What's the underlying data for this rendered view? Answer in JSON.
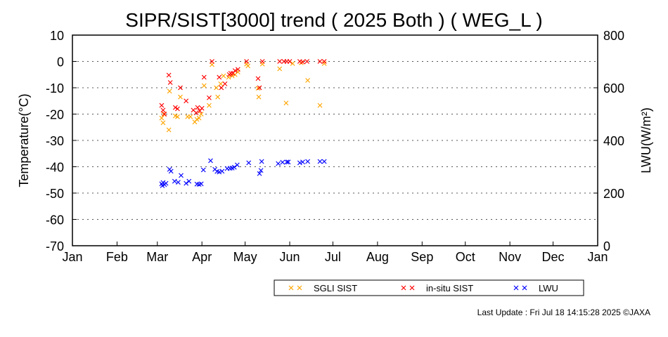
{
  "chart_data": {
    "type": "scatter",
    "title": "SIPR/SIST[3000] trend ( 2025 Both ) ( WEG_L )",
    "ylabel": "Temperature(°C)",
    "y2label": "LWU(W/m²)",
    "ylim": [
      -70,
      10
    ],
    "y2lim": [
      0,
      800
    ],
    "yticks": [
      10,
      0,
      -10,
      -20,
      -30,
      -40,
      -50,
      -60,
      -70
    ],
    "y2ticks": [
      800,
      600,
      400,
      200,
      0
    ],
    "xticks": [
      {
        "label": "Jan",
        "day": 1
      },
      {
        "label": "Feb",
        "day": 32
      },
      {
        "label": "Mar",
        "day": 60
      },
      {
        "label": "Apr",
        "day": 91
      },
      {
        "label": "May",
        "day": 121
      },
      {
        "label": "Jun",
        "day": 152
      },
      {
        "label": "Jul",
        "day": 182
      },
      {
        "label": "Aug",
        "day": 213
      },
      {
        "label": "Sep",
        "day": 244
      },
      {
        "label": "Oct",
        "day": 274
      },
      {
        "label": "Nov",
        "day": 305
      },
      {
        "label": "Dec",
        "day": 335
      },
      {
        "label": "Jan",
        "day": 366
      }
    ],
    "grid": "dotted horizontal",
    "legend_position": "bottom",
    "series": [
      {
        "name": "SGLI SIST",
        "axis": "left",
        "color": "#ffa500",
        "points": [
          [
            63,
            -21.5
          ],
          [
            64,
            -23.3
          ],
          [
            64.5,
            -20
          ],
          [
            68,
            -26
          ],
          [
            68.5,
            -11.3
          ],
          [
            72.5,
            -20.7
          ],
          [
            74,
            -21
          ],
          [
            76,
            -13.5
          ],
          [
            81,
            -21
          ],
          [
            83,
            -21
          ],
          [
            86,
            -23
          ],
          [
            87.5,
            -22
          ],
          [
            89,
            -21.5
          ],
          [
            90.5,
            -20
          ],
          [
            92.5,
            -9.2
          ],
          [
            96,
            -16.7
          ],
          [
            98,
            -1.2
          ],
          [
            101,
            -10
          ],
          [
            102,
            -13.5
          ],
          [
            104,
            -8.5
          ],
          [
            106,
            -5.5
          ],
          [
            109.5,
            -6
          ],
          [
            112,
            -5.5
          ],
          [
            114,
            -5
          ],
          [
            116,
            -4
          ],
          [
            122,
            -1
          ],
          [
            123,
            -1.7
          ],
          [
            130,
            -10.2
          ],
          [
            130.5,
            -13.5
          ],
          [
            133,
            -1
          ],
          [
            145,
            -2.8
          ],
          [
            149.5,
            -15.8
          ],
          [
            154,
            -0.8
          ],
          [
            160,
            -0.5
          ],
          [
            164.5,
            -7.2
          ],
          [
            173,
            -16.7
          ],
          [
            176,
            -0.8
          ]
        ]
      },
      {
        "name": "in-situ SIST",
        "axis": "left",
        "color": "#ff0000",
        "points": [
          [
            63,
            -16.7
          ],
          [
            64,
            -18.5
          ],
          [
            65,
            -20
          ],
          [
            68,
            -5.2
          ],
          [
            69,
            -8
          ],
          [
            72.5,
            -17.5
          ],
          [
            74,
            -18
          ],
          [
            76,
            -10
          ],
          [
            80,
            -15
          ],
          [
            85,
            -18.5
          ],
          [
            87,
            -19.5
          ],
          [
            88,
            -17.5
          ],
          [
            89.5,
            -18.8
          ],
          [
            91,
            -17.8
          ],
          [
            92.5,
            -6
          ],
          [
            96,
            -13.8
          ],
          [
            98,
            0
          ],
          [
            103,
            -6
          ],
          [
            104.5,
            -10
          ],
          [
            107,
            -8.5
          ],
          [
            110,
            -5
          ],
          [
            111,
            -4.5
          ],
          [
            112.5,
            -4.5
          ],
          [
            114,
            -3.5
          ],
          [
            116,
            -3
          ],
          [
            122,
            0
          ],
          [
            130,
            -6.5
          ],
          [
            131,
            -10
          ],
          [
            133,
            0
          ],
          [
            145,
            0
          ],
          [
            148,
            0
          ],
          [
            150,
            0
          ],
          [
            152,
            0
          ],
          [
            159,
            0
          ],
          [
            161,
            -0.2
          ],
          [
            164,
            0
          ],
          [
            173,
            0
          ],
          [
            176,
            0
          ]
        ]
      },
      {
        "name": "LWU",
        "axis": "right",
        "color": "#0000ff",
        "points": [
          [
            63,
            235
          ],
          [
            63.5,
            228
          ],
          [
            64,
            240
          ],
          [
            65,
            232
          ],
          [
            66,
            237
          ],
          [
            68.5,
            290
          ],
          [
            69.5,
            283
          ],
          [
            72,
            245
          ],
          [
            74.5,
            241
          ],
          [
            76.5,
            267
          ],
          [
            80,
            237
          ],
          [
            82,
            245
          ],
          [
            87.5,
            234
          ],
          [
            89,
            233
          ],
          [
            90.5,
            235
          ],
          [
            92,
            288
          ],
          [
            97,
            323
          ],
          [
            100,
            290
          ],
          [
            101.5,
            282
          ],
          [
            103,
            280
          ],
          [
            105,
            283
          ],
          [
            108.5,
            293
          ],
          [
            110.5,
            294
          ],
          [
            112,
            295
          ],
          [
            113.5,
            298
          ],
          [
            115.5,
            307
          ],
          [
            123.5,
            315
          ],
          [
            131,
            274
          ],
          [
            132,
            286
          ],
          [
            132.5,
            320
          ],
          [
            144,
            312
          ],
          [
            147,
            317
          ],
          [
            150,
            318
          ],
          [
            151,
            318
          ],
          [
            159,
            315
          ],
          [
            161,
            318
          ],
          [
            164.5,
            320
          ],
          [
            173,
            320
          ],
          [
            176,
            320
          ]
        ]
      }
    ]
  },
  "footer": {
    "last_update": "Last Update : Fri Jul 18 14:15:28 2025  ©JAXA"
  }
}
